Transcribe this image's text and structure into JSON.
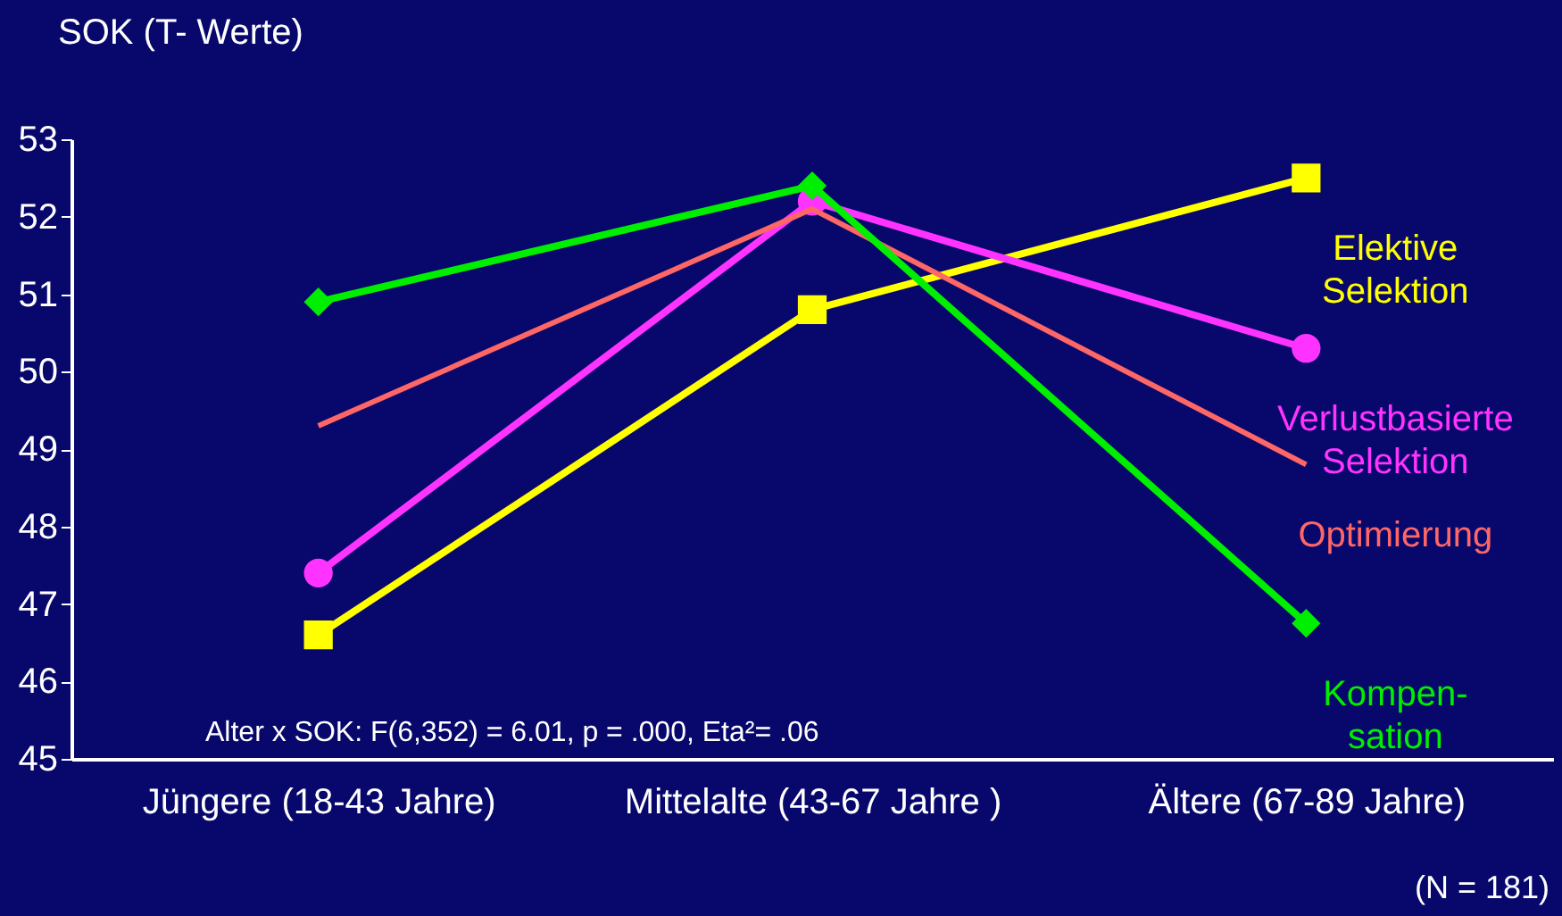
{
  "chart_data": {
    "type": "line",
    "ylabel": "SOK (T- Werte)",
    "categories": [
      "Jüngere (18-43 Jahre)",
      "Mittelalte (43-67 Jahre )",
      "Ältere (67-89 Jahre)"
    ],
    "ylim": [
      45,
      53
    ],
    "yticks": [
      45,
      46,
      47,
      48,
      49,
      50,
      51,
      52,
      53
    ],
    "grid": false,
    "series": [
      {
        "name": "Elektive\nSelektion",
        "color": "#ffff00",
        "marker": "square",
        "values": [
          46.6,
          50.8,
          52.5
        ]
      },
      {
        "name": "Verlustbasierte\nSelektion",
        "color": "#ff33ff",
        "marker": "circle",
        "values": [
          47.4,
          52.2,
          50.3
        ]
      },
      {
        "name": "Optimierung",
        "color": "#ff6666",
        "marker": "none",
        "values": [
          49.3,
          52.1,
          48.8
        ]
      },
      {
        "name": "Kompen-\nsation",
        "color": "#00ee00",
        "marker": "diamond",
        "values": [
          50.9,
          52.4,
          46.75
        ]
      }
    ],
    "annotations": [
      "Alter x SOK: F(6,352) = 6.01, p = .000, Eta²= .06",
      "(N = 181)"
    ]
  }
}
